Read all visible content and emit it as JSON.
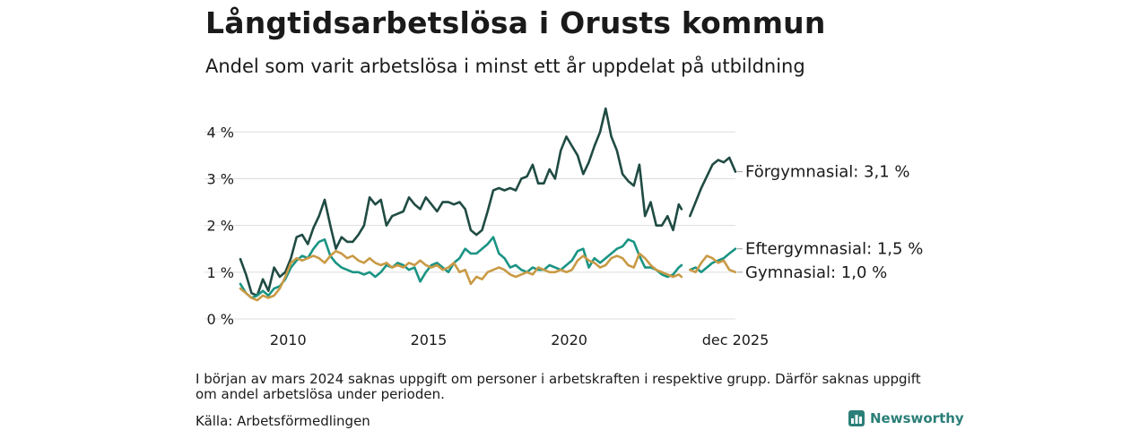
{
  "header": {
    "title": "Långtidsarbetslösa i Orusts kommun",
    "subtitle": "Andel som varit arbetslösa i minst ett år uppdelat på utbildning"
  },
  "footer": {
    "note": "I början av mars 2024 saknas uppgift om personer i arbetskraften i respektive grupp. Därför saknas uppgift om andel arbetslösa under perioden.",
    "source": "Källa: Arbetsförmedlingen",
    "brand": "Newsworthy"
  },
  "colors": {
    "forgymnasial": "#1f4b43",
    "eftergymnasial": "#1a9484",
    "gymnasial": "#c99a45",
    "grid": "#dddddd",
    "brand": "#2b7f78"
  },
  "chart_data": {
    "type": "line",
    "title": "Långtidsarbetslösa i Orusts kommun",
    "xlabel": "",
    "ylabel": "",
    "x_range": [
      2008.3,
      2025.917
    ],
    "ylim": [
      0,
      4.6
    ],
    "y_ticks": [
      0,
      1,
      2,
      3,
      4
    ],
    "y_tick_labels": [
      "0 %",
      "1 %",
      "2 %",
      "3 %",
      "4 %"
    ],
    "x_ticks": [
      {
        "value": 2010,
        "label": "2010"
      },
      {
        "value": 2015,
        "label": "2015"
      },
      {
        "value": 2020,
        "label": "2020"
      },
      {
        "value": 2025.917,
        "label": "dec 2025"
      }
    ],
    "grid": true,
    "gap": [
      2024.0,
      2024.3
    ],
    "series": [
      {
        "name": "Förgymnasial",
        "end_label": "Förgymnasial: 3,1 %",
        "color_key": "forgymnasial",
        "points": [
          [
            2008.3,
            1.28
          ],
          [
            2008.5,
            0.95
          ],
          [
            2008.7,
            0.55
          ],
          [
            2008.9,
            0.5
          ],
          [
            2009.1,
            0.85
          ],
          [
            2009.3,
            0.6
          ],
          [
            2009.5,
            1.1
          ],
          [
            2009.7,
            0.9
          ],
          [
            2009.9,
            1.0
          ],
          [
            2010.1,
            1.3
          ],
          [
            2010.3,
            1.75
          ],
          [
            2010.5,
            1.8
          ],
          [
            2010.7,
            1.6
          ],
          [
            2010.9,
            1.95
          ],
          [
            2011.1,
            2.2
          ],
          [
            2011.3,
            2.55
          ],
          [
            2011.5,
            2.0
          ],
          [
            2011.7,
            1.5
          ],
          [
            2011.9,
            1.75
          ],
          [
            2012.1,
            1.65
          ],
          [
            2012.3,
            1.65
          ],
          [
            2012.5,
            1.8
          ],
          [
            2012.7,
            2.0
          ],
          [
            2012.9,
            2.6
          ],
          [
            2013.1,
            2.45
          ],
          [
            2013.3,
            2.55
          ],
          [
            2013.5,
            2.0
          ],
          [
            2013.7,
            2.2
          ],
          [
            2013.9,
            2.25
          ],
          [
            2014.1,
            2.3
          ],
          [
            2014.3,
            2.6
          ],
          [
            2014.5,
            2.45
          ],
          [
            2014.7,
            2.35
          ],
          [
            2014.9,
            2.6
          ],
          [
            2015.1,
            2.45
          ],
          [
            2015.3,
            2.3
          ],
          [
            2015.5,
            2.5
          ],
          [
            2015.7,
            2.5
          ],
          [
            2015.9,
            2.45
          ],
          [
            2016.1,
            2.5
          ],
          [
            2016.3,
            2.35
          ],
          [
            2016.5,
            1.9
          ],
          [
            2016.7,
            1.8
          ],
          [
            2016.9,
            1.9
          ],
          [
            2017.1,
            2.3
          ],
          [
            2017.3,
            2.75
          ],
          [
            2017.5,
            2.8
          ],
          [
            2017.7,
            2.75
          ],
          [
            2017.9,
            2.8
          ],
          [
            2018.1,
            2.75
          ],
          [
            2018.3,
            3.0
          ],
          [
            2018.5,
            3.05
          ],
          [
            2018.7,
            3.3
          ],
          [
            2018.9,
            2.9
          ],
          [
            2019.1,
            2.9
          ],
          [
            2019.3,
            3.2
          ],
          [
            2019.5,
            3.0
          ],
          [
            2019.7,
            3.6
          ],
          [
            2019.9,
            3.9
          ],
          [
            2020.1,
            3.7
          ],
          [
            2020.3,
            3.5
          ],
          [
            2020.5,
            3.1
          ],
          [
            2020.7,
            3.35
          ],
          [
            2020.9,
            3.7
          ],
          [
            2021.1,
            4.0
          ],
          [
            2021.3,
            4.5
          ],
          [
            2021.5,
            3.9
          ],
          [
            2021.7,
            3.6
          ],
          [
            2021.9,
            3.1
          ],
          [
            2022.1,
            2.95
          ],
          [
            2022.3,
            2.85
          ],
          [
            2022.5,
            3.3
          ],
          [
            2022.7,
            2.2
          ],
          [
            2022.9,
            2.5
          ],
          [
            2023.1,
            2.0
          ],
          [
            2023.3,
            2.0
          ],
          [
            2023.5,
            2.2
          ],
          [
            2023.7,
            1.9
          ],
          [
            2023.9,
            2.45
          ],
          [
            2024.0,
            2.35
          ],
          [
            2024.3,
            2.2
          ],
          [
            2024.5,
            2.5
          ],
          [
            2024.7,
            2.8
          ],
          [
            2024.9,
            3.05
          ],
          [
            2025.1,
            3.3
          ],
          [
            2025.3,
            3.4
          ],
          [
            2025.5,
            3.35
          ],
          [
            2025.7,
            3.45
          ],
          [
            2025.917,
            3.15
          ]
        ]
      },
      {
        "name": "Eftergymnasial",
        "end_label": "Eftergymnasial: 1,5 %",
        "color_key": "eftergymnasial",
        "points": [
          [
            2008.3,
            0.75
          ],
          [
            2008.5,
            0.55
          ],
          [
            2008.7,
            0.45
          ],
          [
            2008.9,
            0.5
          ],
          [
            2009.1,
            0.6
          ],
          [
            2009.3,
            0.5
          ],
          [
            2009.5,
            0.65
          ],
          [
            2009.7,
            0.7
          ],
          [
            2009.9,
            0.85
          ],
          [
            2010.1,
            1.1
          ],
          [
            2010.3,
            1.25
          ],
          [
            2010.5,
            1.35
          ],
          [
            2010.7,
            1.3
          ],
          [
            2010.9,
            1.5
          ],
          [
            2011.1,
            1.65
          ],
          [
            2011.3,
            1.7
          ],
          [
            2011.5,
            1.35
          ],
          [
            2011.7,
            1.2
          ],
          [
            2011.9,
            1.1
          ],
          [
            2012.1,
            1.05
          ],
          [
            2012.3,
            1.0
          ],
          [
            2012.5,
            1.0
          ],
          [
            2012.7,
            0.95
          ],
          [
            2012.9,
            1.0
          ],
          [
            2013.1,
            0.9
          ],
          [
            2013.3,
            1.0
          ],
          [
            2013.5,
            1.15
          ],
          [
            2013.7,
            1.1
          ],
          [
            2013.9,
            1.2
          ],
          [
            2014.1,
            1.15
          ],
          [
            2014.3,
            1.05
          ],
          [
            2014.5,
            1.1
          ],
          [
            2014.7,
            0.8
          ],
          [
            2014.9,
            1.0
          ],
          [
            2015.1,
            1.15
          ],
          [
            2015.3,
            1.2
          ],
          [
            2015.5,
            1.1
          ],
          [
            2015.7,
            1.0
          ],
          [
            2015.9,
            1.2
          ],
          [
            2016.1,
            1.3
          ],
          [
            2016.3,
            1.5
          ],
          [
            2016.5,
            1.4
          ],
          [
            2016.7,
            1.4
          ],
          [
            2016.9,
            1.5
          ],
          [
            2017.1,
            1.6
          ],
          [
            2017.3,
            1.75
          ],
          [
            2017.5,
            1.4
          ],
          [
            2017.7,
            1.3
          ],
          [
            2017.9,
            1.1
          ],
          [
            2018.1,
            1.15
          ],
          [
            2018.3,
            1.05
          ],
          [
            2018.5,
            1.0
          ],
          [
            2018.7,
            1.1
          ],
          [
            2018.9,
            1.05
          ],
          [
            2019.1,
            1.05
          ],
          [
            2019.3,
            1.15
          ],
          [
            2019.5,
            1.1
          ],
          [
            2019.7,
            1.05
          ],
          [
            2019.9,
            1.15
          ],
          [
            2020.1,
            1.25
          ],
          [
            2020.3,
            1.45
          ],
          [
            2020.5,
            1.5
          ],
          [
            2020.7,
            1.1
          ],
          [
            2020.9,
            1.3
          ],
          [
            2021.1,
            1.2
          ],
          [
            2021.3,
            1.3
          ],
          [
            2021.5,
            1.4
          ],
          [
            2021.7,
            1.5
          ],
          [
            2021.9,
            1.55
          ],
          [
            2022.1,
            1.7
          ],
          [
            2022.3,
            1.65
          ],
          [
            2022.5,
            1.35
          ],
          [
            2022.7,
            1.1
          ],
          [
            2022.9,
            1.1
          ],
          [
            2023.1,
            1.05
          ],
          [
            2023.3,
            0.95
          ],
          [
            2023.5,
            0.9
          ],
          [
            2023.7,
            0.95
          ],
          [
            2023.9,
            1.1
          ],
          [
            2024.0,
            1.15
          ],
          [
            2024.3,
            1.05
          ],
          [
            2024.5,
            1.1
          ],
          [
            2024.7,
            1.0
          ],
          [
            2024.9,
            1.1
          ],
          [
            2025.1,
            1.2
          ],
          [
            2025.3,
            1.25
          ],
          [
            2025.5,
            1.3
          ],
          [
            2025.7,
            1.4
          ],
          [
            2025.917,
            1.5
          ]
        ]
      },
      {
        "name": "Gymnasial",
        "end_label": "Gymnasial: 1,0 %",
        "color_key": "gymnasial",
        "points": [
          [
            2008.3,
            0.65
          ],
          [
            2008.5,
            0.55
          ],
          [
            2008.7,
            0.45
          ],
          [
            2008.9,
            0.4
          ],
          [
            2009.1,
            0.5
          ],
          [
            2009.3,
            0.45
          ],
          [
            2009.5,
            0.5
          ],
          [
            2009.7,
            0.65
          ],
          [
            2009.9,
            0.9
          ],
          [
            2010.1,
            1.2
          ],
          [
            2010.3,
            1.3
          ],
          [
            2010.5,
            1.25
          ],
          [
            2010.7,
            1.3
          ],
          [
            2010.9,
            1.35
          ],
          [
            2011.1,
            1.3
          ],
          [
            2011.3,
            1.2
          ],
          [
            2011.5,
            1.35
          ],
          [
            2011.7,
            1.45
          ],
          [
            2011.9,
            1.4
          ],
          [
            2012.1,
            1.3
          ],
          [
            2012.3,
            1.35
          ],
          [
            2012.5,
            1.25
          ],
          [
            2012.7,
            1.2
          ],
          [
            2012.9,
            1.3
          ],
          [
            2013.1,
            1.2
          ],
          [
            2013.3,
            1.15
          ],
          [
            2013.5,
            1.2
          ],
          [
            2013.7,
            1.1
          ],
          [
            2013.9,
            1.15
          ],
          [
            2014.1,
            1.1
          ],
          [
            2014.3,
            1.2
          ],
          [
            2014.5,
            1.15
          ],
          [
            2014.7,
            1.25
          ],
          [
            2014.9,
            1.15
          ],
          [
            2015.1,
            1.1
          ],
          [
            2015.3,
            1.15
          ],
          [
            2015.5,
            1.05
          ],
          [
            2015.7,
            1.1
          ],
          [
            2015.9,
            1.2
          ],
          [
            2016.1,
            1.0
          ],
          [
            2016.3,
            1.05
          ],
          [
            2016.5,
            0.75
          ],
          [
            2016.7,
            0.9
          ],
          [
            2016.9,
            0.85
          ],
          [
            2017.1,
            1.0
          ],
          [
            2017.3,
            1.05
          ],
          [
            2017.5,
            1.1
          ],
          [
            2017.7,
            1.05
          ],
          [
            2017.9,
            0.95
          ],
          [
            2018.1,
            0.9
          ],
          [
            2018.3,
            0.95
          ],
          [
            2018.5,
            1.0
          ],
          [
            2018.7,
            0.95
          ],
          [
            2018.9,
            1.1
          ],
          [
            2019.1,
            1.05
          ],
          [
            2019.3,
            1.0
          ],
          [
            2019.5,
            1.0
          ],
          [
            2019.7,
            1.05
          ],
          [
            2019.9,
            1.0
          ],
          [
            2020.1,
            1.05
          ],
          [
            2020.3,
            1.25
          ],
          [
            2020.5,
            1.35
          ],
          [
            2020.7,
            1.25
          ],
          [
            2020.9,
            1.2
          ],
          [
            2021.1,
            1.1
          ],
          [
            2021.3,
            1.15
          ],
          [
            2021.5,
            1.3
          ],
          [
            2021.7,
            1.35
          ],
          [
            2021.9,
            1.3
          ],
          [
            2022.1,
            1.15
          ],
          [
            2022.3,
            1.1
          ],
          [
            2022.5,
            1.4
          ],
          [
            2022.7,
            1.3
          ],
          [
            2022.9,
            1.15
          ],
          [
            2023.1,
            1.05
          ],
          [
            2023.3,
            1.0
          ],
          [
            2023.5,
            0.95
          ],
          [
            2023.7,
            0.9
          ],
          [
            2023.9,
            0.95
          ],
          [
            2024.0,
            0.9
          ],
          [
            2024.3,
            1.05
          ],
          [
            2024.5,
            1.0
          ],
          [
            2024.7,
            1.2
          ],
          [
            2024.9,
            1.35
          ],
          [
            2025.1,
            1.3
          ],
          [
            2025.3,
            1.2
          ],
          [
            2025.5,
            1.25
          ],
          [
            2025.7,
            1.05
          ],
          [
            2025.917,
            1.0
          ]
        ]
      }
    ]
  }
}
